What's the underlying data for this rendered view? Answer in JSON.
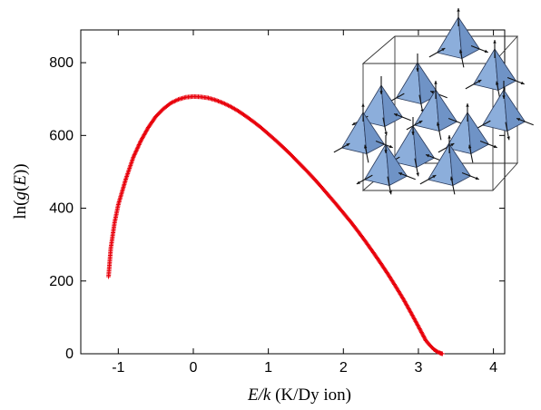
{
  "chart_data": {
    "type": "scatter",
    "title": "",
    "xlabel_italic": "E/k",
    "xlabel_rest": " (K/Dy ion)",
    "ylabel_prefix": "ln(",
    "ylabel_italic_g": "g",
    "ylabel_mid": "(",
    "ylabel_italic_e": "E",
    "ylabel_suffix": "))",
    "xlim": [
      -1.5,
      4.15
    ],
    "ylim": [
      0,
      890
    ],
    "xticks": [
      "-1",
      "0",
      "1",
      "2",
      "3",
      "4"
    ],
    "yticks": [
      "0",
      "200",
      "400",
      "600",
      "800"
    ],
    "grid": false,
    "legend": "none",
    "marker": "+",
    "series": [
      {
        "color": "#e8000b",
        "x": [
          -1.13,
          -1.1,
          -1.05,
          -1.0,
          -0.9,
          -0.8,
          -0.7,
          -0.6,
          -0.5,
          -0.4,
          -0.3,
          -0.2,
          -0.1,
          0.0,
          0.1,
          0.2,
          0.3,
          0.4,
          0.5,
          0.6,
          0.7,
          0.8,
          0.9,
          1.0,
          1.1,
          1.2,
          1.3,
          1.4,
          1.5,
          1.6,
          1.7,
          1.8,
          1.9,
          2.0,
          2.1,
          2.2,
          2.3,
          2.4,
          2.5,
          2.6,
          2.7,
          2.8,
          2.9,
          3.0,
          3.1,
          3.15,
          3.2,
          3.25,
          3.28,
          3.3,
          3.32
        ],
        "y": [
          212,
          290,
          360,
          410,
          480,
          540,
          585,
          622,
          652,
          673,
          689,
          699,
          705,
          707,
          706,
          703,
          697,
          689,
          679,
          667,
          653,
          638,
          622,
          604,
          586,
          567,
          547,
          526,
          505,
          483,
          460,
          436,
          412,
          387,
          362,
          335,
          307,
          278,
          248,
          217,
          184,
          150,
          113,
          75,
          36,
          24,
          13,
          6,
          3,
          1,
          0
        ]
      }
    ]
  },
  "inset": {
    "colors": {
      "face": "#8caedb",
      "face_dark": "#6f93c6",
      "edge": "#2a3a5a",
      "arrow": "#111111",
      "box": "#333333"
    }
  }
}
